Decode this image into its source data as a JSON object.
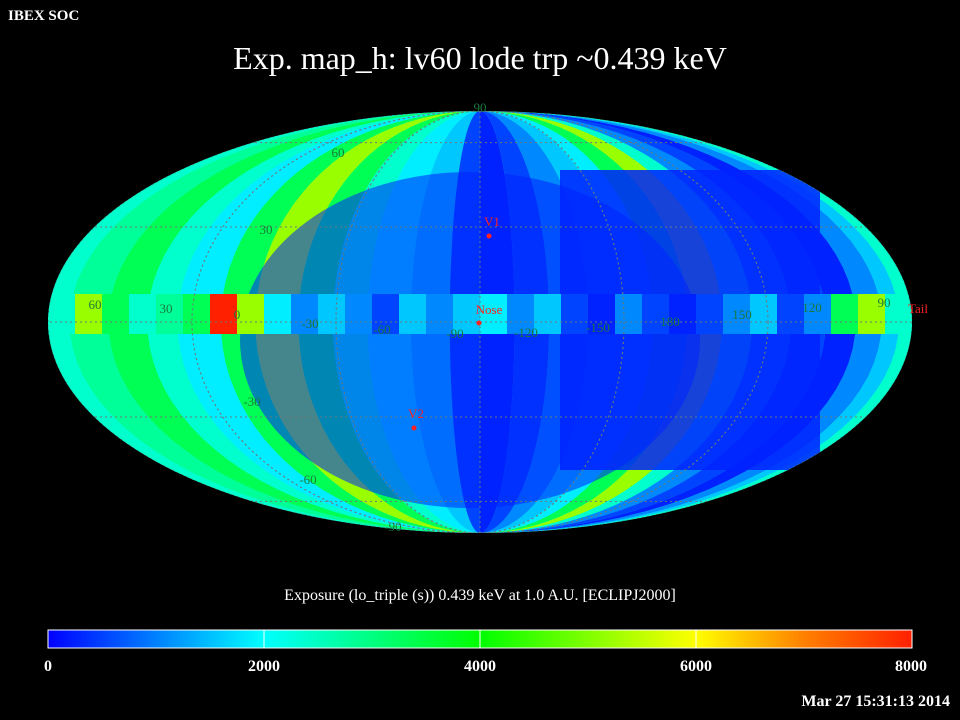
{
  "header": {
    "source_label": "IBEX SOC",
    "title": "Exp.   map_h: lv60 lode trp ~0.439 keV"
  },
  "map_data": {
    "projection": "mollweide",
    "frame": "ECLIPJ2000",
    "lon_labels": [
      "60",
      "30",
      "0",
      "-30",
      "-60",
      "-90",
      "-120",
      "-150",
      "180",
      "150",
      "120",
      "90"
    ],
    "lat_labels": [
      "90",
      "60",
      "30",
      "-30",
      "-60",
      "-90"
    ],
    "markers": [
      {
        "label": "V1",
        "color": "#ff2020"
      },
      {
        "label": "Nose",
        "color": "#ff2020"
      },
      {
        "label": "V2",
        "color": "#ff2020"
      },
      {
        "label": "Tail",
        "color": "#ff2020"
      }
    ],
    "colors": {
      "deep_blue": "#0022ff",
      "blue": "#0044ff",
      "mid_blue": "#0088ff",
      "sky": "#00c8ff",
      "cyan": "#00eeff",
      "aqua": "#00ffcc",
      "teal_green": "#00ff99",
      "green": "#00ff55",
      "yellow_green": "#99ff00",
      "red": "#ff2000",
      "grid": "#6a7a7a",
      "label_green": "#1a7a3a",
      "marker_red": "#ff2020"
    },
    "exposure_pattern": "low (deep blue) in the central and right interior, rising to green/yellow-green toward the left limb and outer rim; a small red patch left of center on the equator",
    "exposure_units": "s"
  },
  "colorbar": {
    "title": "Exposure (lo_triple (s))  0.439 keV at 1.0 A.U. [ECLIPJ2000]",
    "ticks": [
      "0",
      "2000",
      "4000",
      "6000",
      "8000"
    ],
    "range": [
      0,
      8000
    ],
    "gradient": [
      "#0000ff",
      "#0080ff",
      "#00ffff",
      "#00ff80",
      "#00ff00",
      "#80ff00",
      "#ffff00",
      "#ff8000",
      "#ff2000"
    ]
  },
  "footer": {
    "timestamp": "Mar 27 15:31:13 2014"
  }
}
